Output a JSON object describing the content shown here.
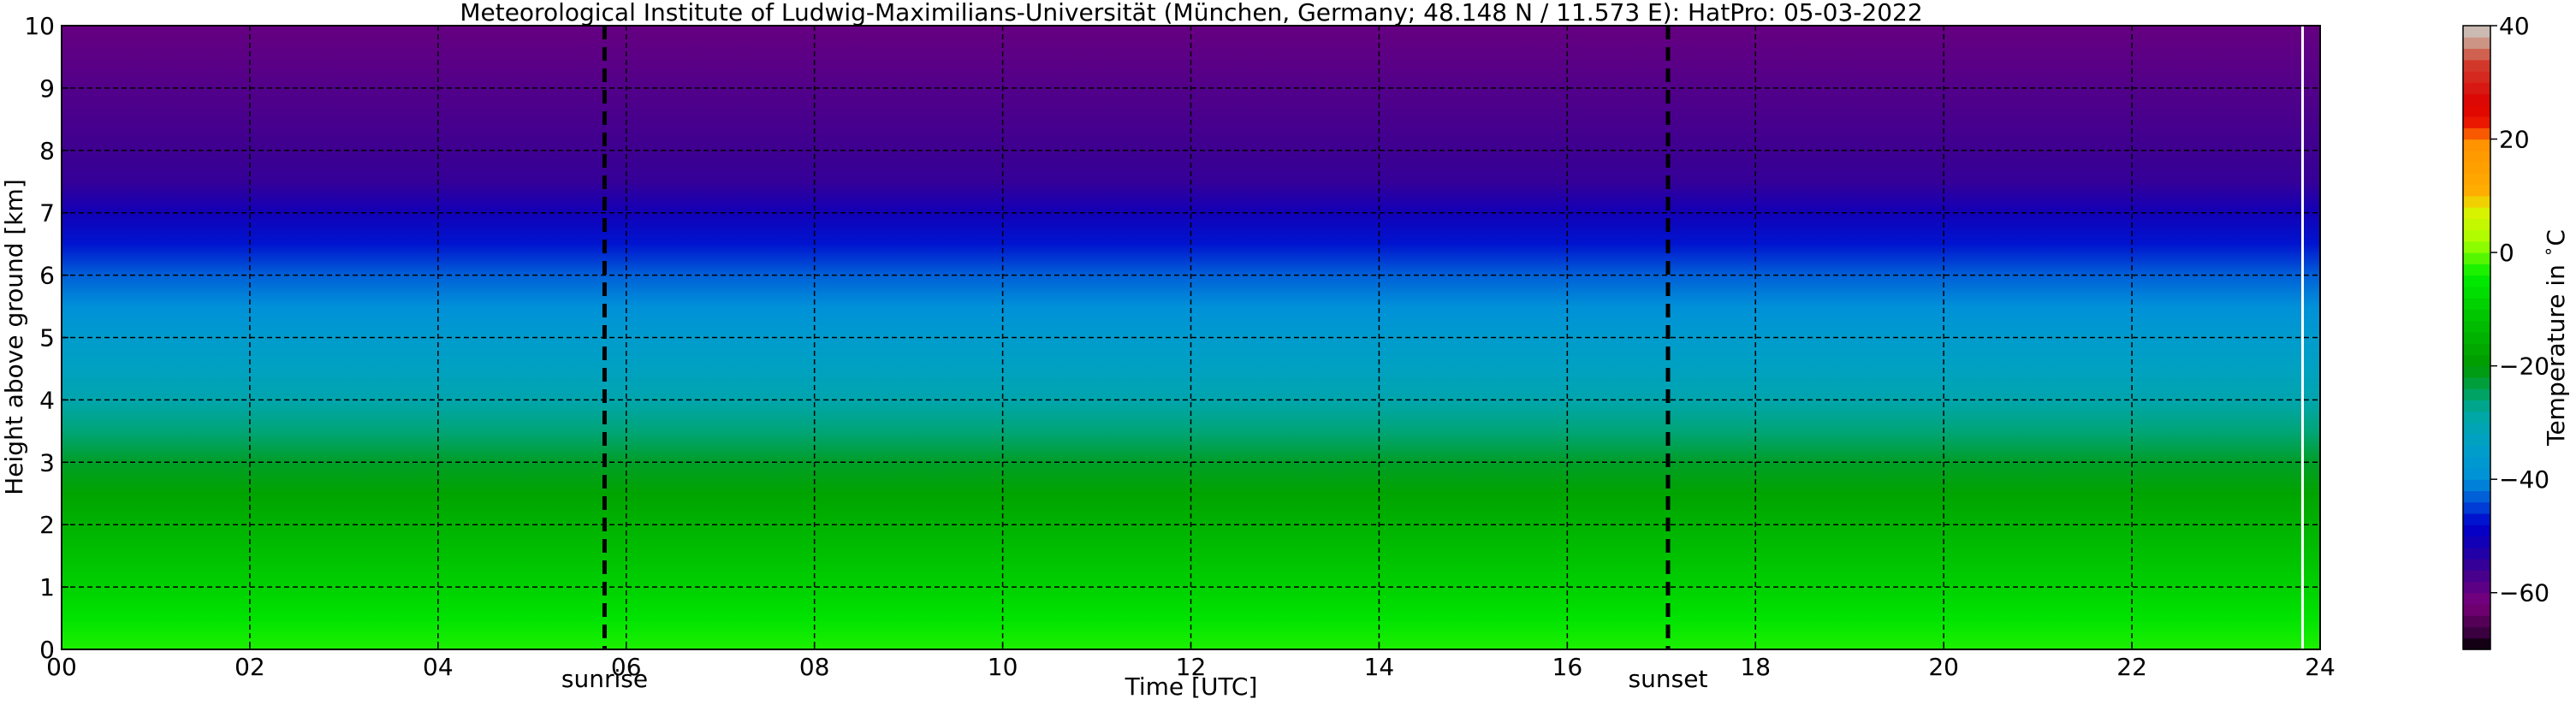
{
  "chart_data": {
    "type": "heatmap",
    "title": "Meteorological Institute of Ludwig-Maximilians-Universität (München, Germany; 48.148 N / 11.573 E):    HatPro: 05-03-2022",
    "xlabel": "Time [UTC]",
    "ylabel": "Height above ground [km]",
    "xlim": [
      0,
      24
    ],
    "ylim": [
      0,
      10
    ],
    "x_ticks": [
      0,
      2,
      4,
      6,
      8,
      10,
      12,
      14,
      16,
      18,
      20,
      22,
      24
    ],
    "x_tick_labels": [
      "00",
      "02",
      "04",
      "06",
      "08",
      "10",
      "12",
      "14",
      "16",
      "18",
      "20",
      "22",
      "24"
    ],
    "y_ticks": [
      0,
      1,
      2,
      3,
      4,
      5,
      6,
      7,
      8,
      9,
      10
    ],
    "y_tick_labels": [
      "0",
      "1",
      "2",
      "3",
      "4",
      "5",
      "6",
      "7",
      "8",
      "9",
      "10"
    ],
    "grid": true,
    "data_end_time": 23.8,
    "vertical_markers": [
      {
        "label": "sunrise",
        "time": 5.77
      },
      {
        "label": "sunset",
        "time": 17.07
      }
    ],
    "temperature_profile": {
      "heights_km": [
        0,
        0.5,
        1,
        1.5,
        2,
        2.5,
        3,
        3.5,
        4,
        4.5,
        5,
        5.5,
        6,
        6.5,
        7,
        7.5,
        8,
        8.5,
        9,
        9.5,
        10
      ],
      "temperature_c": [
        -3,
        -6,
        -9,
        -12,
        -15,
        -18,
        -22,
        -26,
        -30,
        -33,
        -36,
        -40,
        -43,
        -47,
        -51,
        -55,
        -56,
        -57,
        -58,
        -59,
        -60
      ]
    },
    "colorbar": {
      "label": "Temperature in $^\\circ$C",
      "min": -70,
      "max": 40,
      "ticks": [
        -60,
        -40,
        -20,
        0,
        20,
        40
      ],
      "tick_labels": [
        "−60",
        "−40",
        "−20",
        "0",
        "20",
        "40"
      ],
      "colors": [
        {
          "value": -70,
          "color": "#000000"
        },
        {
          "value": -67,
          "color": "#3a0040"
        },
        {
          "value": -62,
          "color": "#7a007a"
        },
        {
          "value": -56,
          "color": "#3e0090"
        },
        {
          "value": -52,
          "color": "#1800b0"
        },
        {
          "value": -48,
          "color": "#0000cc"
        },
        {
          "value": -44,
          "color": "#0050d8"
        },
        {
          "value": -40,
          "color": "#0090d8"
        },
        {
          "value": -34,
          "color": "#00a0c8"
        },
        {
          "value": -28,
          "color": "#00a8a0"
        },
        {
          "value": -20,
          "color": "#009a00"
        },
        {
          "value": -12,
          "color": "#00c000"
        },
        {
          "value": -4,
          "color": "#00ee00"
        },
        {
          "value": 2,
          "color": "#a8ff00"
        },
        {
          "value": 8,
          "color": "#e0f000"
        },
        {
          "value": 10,
          "color": "#ffb000"
        },
        {
          "value": 20,
          "color": "#ff9000"
        },
        {
          "value": 22,
          "color": "#ee2000"
        },
        {
          "value": 26,
          "color": "#dd0000"
        },
        {
          "value": 34,
          "color": "#d04030"
        },
        {
          "value": 36,
          "color": "#d08070"
        },
        {
          "value": 38,
          "color": "#c8a898"
        },
        {
          "value": 40,
          "color": "#cccccc"
        }
      ]
    }
  }
}
